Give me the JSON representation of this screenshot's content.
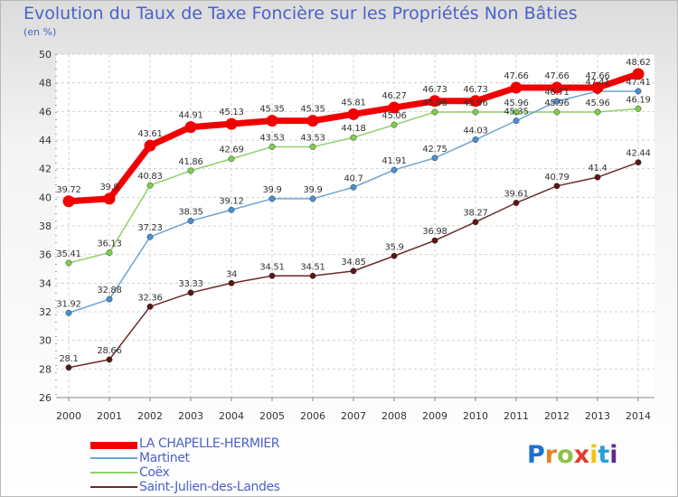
{
  "title": "Evolution du Taux de Taxe Foncière sur les Propriétés Non Bâties",
  "unit": "(en %)",
  "logo": [
    "P",
    "r",
    "o",
    "x",
    "i",
    "t",
    "i"
  ],
  "logo_colors": [
    "#1e6fcf",
    "#e8822a",
    "#8bc34a",
    "#e23b2e",
    "#f4c20d",
    "#2a9fd6",
    "#5c2d91"
  ],
  "chart_data": {
    "type": "line",
    "x": [
      "2000",
      "2001",
      "2002",
      "2003",
      "2004",
      "2005",
      "2006",
      "2007",
      "2008",
      "2009",
      "2010",
      "2011",
      "2012",
      "2013",
      "2014"
    ],
    "ylim": [
      26,
      50
    ],
    "yticks": [
      26,
      28,
      30,
      32,
      34,
      36,
      38,
      40,
      42,
      44,
      46,
      48,
      50
    ],
    "grid": true,
    "series": [
      {
        "name": "Saint-Julien-des-Landes",
        "color": "#6b2a2a",
        "marker": "#5a1616",
        "values": [
          28.1,
          28.66,
          32.36,
          33.33,
          34,
          34.51,
          34.51,
          34.85,
          35.9,
          36.98,
          38.27,
          39.61,
          40.79,
          41.4,
          42.44
        ],
        "labels": [
          "28.1",
          "28.66",
          "32.36",
          "33.33",
          "34",
          "34.51",
          "34.51",
          "34.85",
          "35.9",
          "36.98",
          "38.27",
          "39.61",
          "40.79",
          "41.4",
          "42.44"
        ]
      },
      {
        "name": "Coëx",
        "color": "#8ed26a",
        "marker": "#7ed04a",
        "values": [
          35.41,
          36.13,
          40.83,
          41.86,
          42.69,
          43.53,
          43.53,
          44.18,
          45.06,
          45.96,
          45.96,
          45.96,
          45.96,
          45.96,
          46.19
        ],
        "labels": [
          "35.41",
          "36.13",
          "40.83",
          "41.86",
          "42.69",
          "43.53",
          "43.53",
          "44.18",
          "45.06",
          "45.96",
          "45.96",
          "45.96",
          "45.96",
          "45.96",
          "46.19"
        ]
      },
      {
        "name": "Martinet",
        "color": "#6ba4d6",
        "marker": "#4a8fd1",
        "values": [
          31.92,
          32.88,
          37.23,
          38.35,
          39.12,
          39.9,
          39.9,
          40.7,
          41.91,
          42.75,
          44.03,
          45.35,
          46.71,
          47.41,
          47.41
        ],
        "labels": [
          "31.92",
          "32.88",
          "37.23",
          "38.35",
          "39.12",
          "39.9",
          "39.9",
          "40.7",
          "41.91",
          "42.75",
          "44.03",
          "45.35",
          "46.71",
          "47.41",
          "47.41"
        ]
      },
      {
        "name": "LA CHAPELLE-HERMIER",
        "color": "#f20000",
        "marker": "#f20000",
        "values": [
          39.72,
          39.9,
          43.61,
          44.91,
          45.13,
          45.35,
          45.35,
          45.81,
          46.27,
          46.73,
          46.73,
          47.66,
          47.66,
          47.66,
          48.62
        ],
        "labels": [
          "39.72",
          "39.9",
          "43.61",
          "44.91",
          "45.13",
          "45.35",
          "45.35",
          "45.81",
          "46.27",
          "46.73",
          "46.73",
          "47.66",
          "47.66",
          "47.66",
          "48.62"
        ]
      }
    ],
    "legend": [
      "LA CHAPELLE-HERMIER",
      "Martinet",
      "Coëx",
      "Saint-Julien-des-Landes"
    ],
    "legend_colors": [
      "#f20000",
      "#6ba4d6",
      "#8ed26a",
      "#6b2a2a"
    ]
  }
}
